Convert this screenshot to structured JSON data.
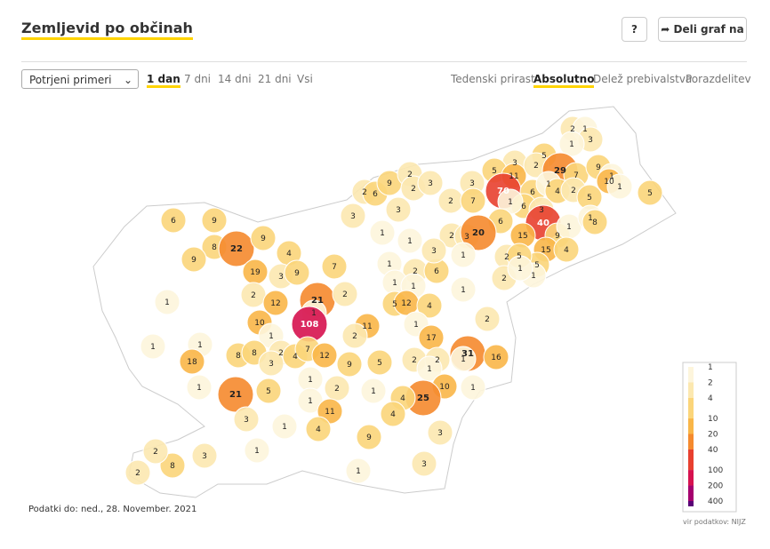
{
  "header": {
    "title": "Zemljevid po občinah",
    "help": "?",
    "share": "Deli graf na"
  },
  "controls": {
    "select": "Potrjeni primeri",
    "periods": [
      "1 dan",
      "7 dni",
      "14 dni",
      "21 dni",
      "Vsi"
    ],
    "active_period": 0,
    "modes": [
      "Tedenski prirast",
      "Absolutno",
      "Delež prebivalstva",
      "Porazdelitev"
    ],
    "active_mode": 1
  },
  "map": {
    "values": [
      2,
      1,
      3,
      1,
      5,
      3,
      5,
      11,
      2,
      29,
      7,
      9,
      1,
      10,
      1,
      5,
      3,
      70,
      6,
      1,
      4,
      2,
      5,
      6,
      1,
      3,
      40,
      9,
      1,
      1,
      8,
      6,
      15,
      15,
      4,
      5,
      1,
      6,
      9,
      8,
      22,
      9,
      9,
      4,
      19,
      3,
      9,
      7,
      1,
      2,
      21,
      2,
      12,
      1,
      108,
      11,
      10,
      1,
      2,
      1,
      1,
      8,
      8,
      2,
      4,
      7,
      12,
      9,
      5,
      18,
      1,
      21,
      3,
      5,
      1,
      2,
      1,
      1,
      11,
      4,
      3,
      1,
      9,
      1,
      3,
      8,
      2,
      2,
      3,
      1,
      2,
      6,
      9,
      2,
      2,
      3,
      3,
      3,
      1,
      2,
      7,
      1,
      2,
      3,
      20,
      1,
      2,
      6,
      3,
      1,
      2,
      5,
      2,
      1,
      1,
      1,
      5,
      12,
      4,
      1,
      1,
      17,
      31,
      16,
      2,
      2,
      2,
      1,
      10,
      25,
      4,
      4,
      3,
      1,
      1
    ],
    "legend": {
      "ticks": [
        1,
        2,
        4,
        10,
        20,
        40,
        100,
        200,
        400
      ],
      "colors": [
        "#fdf5dc",
        "#fce8b0",
        "#fbd57a",
        "#f9b648",
        "#f58a2e",
        "#e8402f",
        "#d6124f",
        "#a5006e",
        "#5a0077"
      ]
    },
    "source": "vir podatkov: NIJZ"
  },
  "footer": {
    "updated": "Podatki do: ned., 28. November. 2021"
  }
}
